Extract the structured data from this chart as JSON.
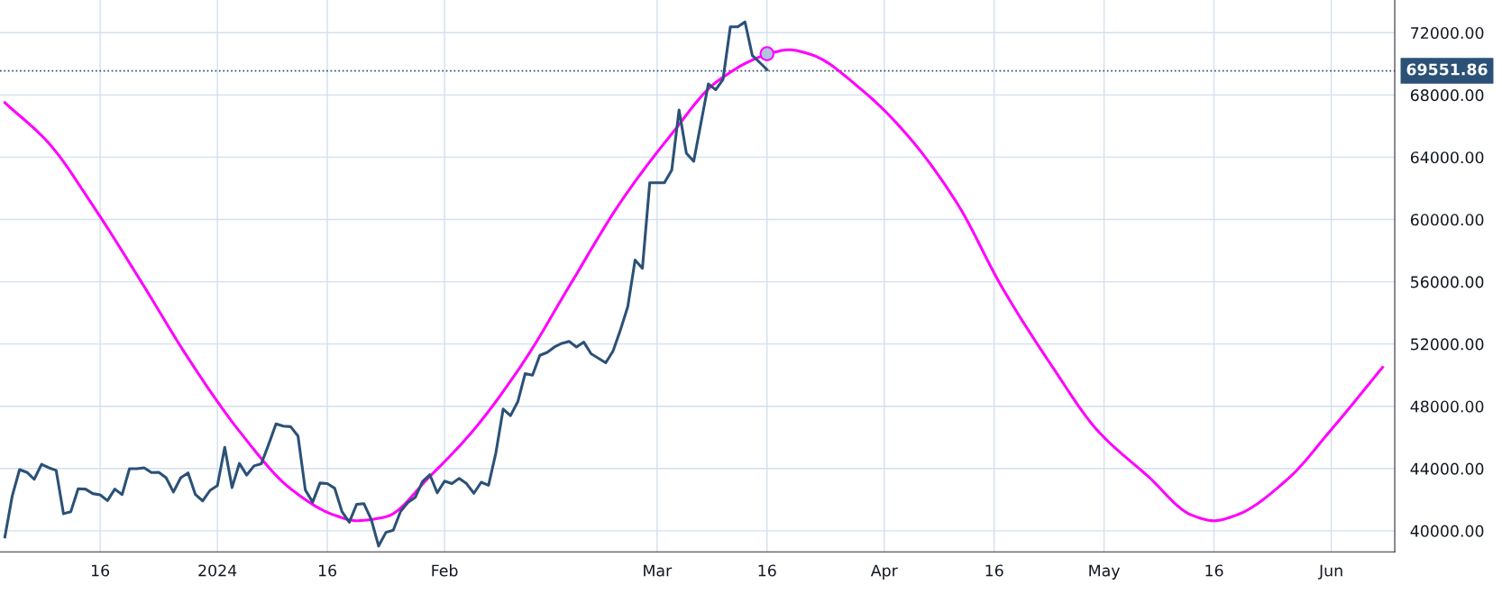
{
  "chart_data": {
    "type": "line",
    "xlim": [
      "2023-12-02T08:00",
      "2024-06-09T16:00"
    ],
    "ylim": [
      38650,
      74100
    ],
    "xticks": [
      {
        "value": "2023-12-16",
        "label": "16"
      },
      {
        "value": "2024-01-01",
        "label": "2024"
      },
      {
        "value": "2024-01-16",
        "label": "16"
      },
      {
        "value": "2024-02-01",
        "label": "Feb"
      },
      {
        "value": "2024-03-01",
        "label": "Mar"
      },
      {
        "value": "2024-03-16",
        "label": "16"
      },
      {
        "value": "2024-04-01",
        "label": "Apr"
      },
      {
        "value": "2024-04-16",
        "label": "16"
      },
      {
        "value": "2024-05-01",
        "label": "May"
      },
      {
        "value": "2024-05-16",
        "label": "16"
      },
      {
        "value": "2024-06-01",
        "label": "Jun"
      }
    ],
    "yticks": [
      {
        "value": 40000,
        "label": "40000.00"
      },
      {
        "value": 44000,
        "label": "44000.00"
      },
      {
        "value": 48000,
        "label": "48000.00"
      },
      {
        "value": 52000,
        "label": "52000.00"
      },
      {
        "value": 56000,
        "label": "56000.00"
      },
      {
        "value": 60000,
        "label": "60000.00"
      },
      {
        "value": 64000,
        "label": "64000.00"
      },
      {
        "value": 68000,
        "label": "68000.00"
      },
      {
        "value": 72000,
        "label": "72000.00"
      }
    ],
    "grid": true,
    "legend": false,
    "ref_lines": [
      {
        "axis": "y",
        "value": 69551.86,
        "label": "69551.86",
        "color": "#2b5177",
        "line_style": "dotted"
      }
    ],
    "series": [
      {
        "color": "#ff00ff",
        "x": [
          "2023-12-03",
          "2023-12-09",
          "2023-12-15",
          "2023-12-22",
          "2023-12-28",
          "2024-01-04",
          "2024-01-11",
          "2024-01-17",
          "2024-01-20",
          "2024-01-24",
          "2024-01-30",
          "2024-02-05",
          "2024-02-12",
          "2024-02-18",
          "2024-02-25",
          "2024-03-03",
          "2024-03-09",
          "2024-03-16",
          "2024-03-19",
          "2024-03-22",
          "2024-03-29",
          "2024-04-04",
          "2024-04-11",
          "2024-04-17",
          "2024-04-24",
          "2024-04-30",
          "2024-05-07",
          "2024-05-13",
          "2024-05-16",
          "2024-05-19",
          "2024-05-26",
          "2024-06-01",
          "2024-06-08"
        ],
        "values": [
          67500,
          64900,
          60900,
          55700,
          51100,
          46400,
          42700,
          41000,
          40650,
          40900,
          43500,
          46500,
          51000,
          55700,
          61100,
          65500,
          68800,
          70600,
          70900,
          70600,
          68300,
          65500,
          61000,
          55700,
          50500,
          46500,
          43500,
          41000,
          40650,
          41000,
          43300,
          46500,
          50500
        ]
      },
      {
        "color": "#2b5177",
        "x": [
          "2023-12-03",
          "2023-12-04",
          "2023-12-05",
          "2023-12-06",
          "2023-12-07",
          "2023-12-08",
          "2023-12-09",
          "2023-12-10",
          "2023-12-11",
          "2023-12-12",
          "2023-12-13",
          "2023-12-14",
          "2023-12-15",
          "2023-12-16",
          "2023-12-17",
          "2023-12-18",
          "2023-12-19",
          "2023-12-20",
          "2023-12-21",
          "2023-12-22",
          "2023-12-23",
          "2023-12-24",
          "2023-12-25",
          "2023-12-26",
          "2023-12-27",
          "2023-12-28",
          "2023-12-29",
          "2023-12-30",
          "2023-12-31",
          "2024-01-01",
          "2024-01-02",
          "2024-01-03",
          "2024-01-04",
          "2024-01-05",
          "2024-01-06",
          "2024-01-07",
          "2024-01-08",
          "2024-01-09",
          "2024-01-10",
          "2024-01-11",
          "2024-01-12",
          "2024-01-13",
          "2024-01-14",
          "2024-01-15",
          "2024-01-16",
          "2024-01-17",
          "2024-01-18",
          "2024-01-19",
          "2024-01-20",
          "2024-01-21",
          "2024-01-22",
          "2024-01-23",
          "2024-01-24",
          "2024-01-25",
          "2024-01-26",
          "2024-01-27",
          "2024-01-28",
          "2024-01-29",
          "2024-01-30",
          "2024-01-31",
          "2024-02-01",
          "2024-02-02",
          "2024-02-03",
          "2024-02-04",
          "2024-02-05",
          "2024-02-06",
          "2024-02-07",
          "2024-02-08",
          "2024-02-09",
          "2024-02-10",
          "2024-02-11",
          "2024-02-12",
          "2024-02-13",
          "2024-02-14",
          "2024-02-15",
          "2024-02-16",
          "2024-02-17",
          "2024-02-18",
          "2024-02-19",
          "2024-02-20",
          "2024-02-21",
          "2024-02-22",
          "2024-02-23",
          "2024-02-24",
          "2024-02-25",
          "2024-02-26",
          "2024-02-27",
          "2024-02-28",
          "2024-02-29",
          "2024-03-01",
          "2024-03-02",
          "2024-03-03",
          "2024-03-04",
          "2024-03-05",
          "2024-03-06",
          "2024-03-07",
          "2024-03-08",
          "2024-03-09",
          "2024-03-10",
          "2024-03-11",
          "2024-03-12",
          "2024-03-13",
          "2024-03-14",
          "2024-03-15",
          "2024-03-16"
        ],
        "values": [
          39600,
          42230,
          43930,
          43760,
          43310,
          44270,
          44050,
          43880,
          41100,
          41230,
          42700,
          42680,
          42390,
          42310,
          41940,
          42680,
          42330,
          43990,
          43990,
          44050,
          43740,
          43760,
          43410,
          42490,
          43410,
          43720,
          42330,
          41920,
          42600,
          42900,
          45360,
          42780,
          44330,
          43580,
          44170,
          44310,
          45560,
          46870,
          46730,
          46690,
          46090,
          42620,
          41840,
          43070,
          43030,
          42740,
          41230,
          40550,
          41700,
          41740,
          40720,
          39020,
          39900,
          40040,
          41250,
          41820,
          42150,
          43170,
          43600,
          42440,
          43190,
          43030,
          43370,
          43030,
          42410,
          43120,
          42930,
          45000,
          47820,
          47400,
          48300,
          50100,
          50000,
          51270,
          51460,
          51810,
          52040,
          52170,
          51810,
          52120,
          51370,
          51080,
          50790,
          51560,
          52900,
          54400,
          57390,
          56860,
          62360,
          62360,
          62360,
          63170,
          67030,
          64260,
          63740,
          66230,
          68710,
          68330,
          69000,
          72380,
          72380,
          72690,
          70530,
          70090,
          69630
        ]
      },
      {
        "type": "scatter",
        "color": "#b0c4de",
        "marker": "circle",
        "x": [
          "2024-03-16"
        ],
        "values": [
          70650
        ]
      }
    ]
  }
}
